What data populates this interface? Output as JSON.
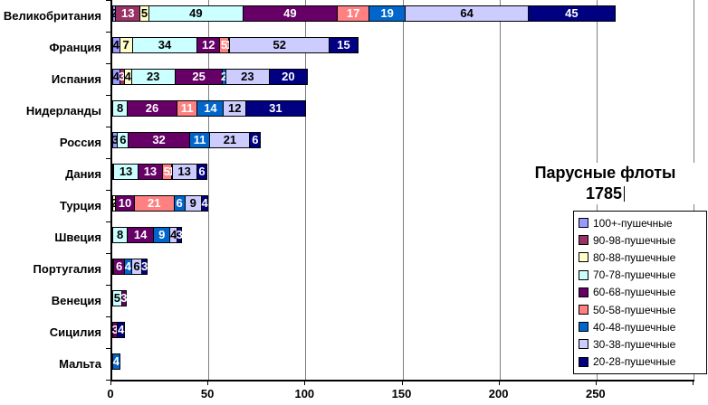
{
  "title": {
    "line1": "Парусные флоты",
    "line2": "1785"
  },
  "axis": {
    "tick_labels": [
      "0",
      "50",
      "100",
      "150",
      "200",
      "250"
    ],
    "tick_step": 50,
    "max": 300
  },
  "legend": {
    "items": [
      {
        "label": "100+-пушечные",
        "color": "#9999FF"
      },
      {
        "label": "90-98-пушечные",
        "color": "#993366"
      },
      {
        "label": "80-88-пушечные",
        "color": "#FFFFCC"
      },
      {
        "label": "70-78-пушечные",
        "color": "#CCFFFF"
      },
      {
        "label": "60-68-пушечные",
        "color": "#660066"
      },
      {
        "label": "50-58-пушечные",
        "color": "#FF8080"
      },
      {
        "label": "40-48-пушечные",
        "color": "#0066CC"
      },
      {
        "label": "30-38-пушечные",
        "color": "#CCCCFF"
      },
      {
        "label": "20-28-пушечные",
        "color": "#000080"
      }
    ]
  },
  "chart_data": {
    "type": "bar",
    "orientation": "horizontal",
    "stacked": true,
    "title": "Парусные флоты 1785",
    "xlabel": "",
    "ylabel": "",
    "xlim": [
      0,
      300
    ],
    "grid": true,
    "legend_position": "bottom-right",
    "series_names": [
      "100+-пушечные",
      "90-98-пушечные",
      "80-88-пушечные",
      "70-78-пушечные",
      "60-68-пушечные",
      "50-58-пушечные",
      "40-48-пушечные",
      "30-38-пушечные",
      "20-28-пушечные"
    ],
    "series_colors": [
      "#9999FF",
      "#993366",
      "#FFFFCC",
      "#CCFFFF",
      "#660066",
      "#FF8080",
      "#0066CC",
      "#CCCCFF",
      "#000080"
    ],
    "series_label_colors": [
      "#000000",
      "#FFFFFF",
      "#000000",
      "#000000",
      "#FFFFFF",
      "#FFFFFF",
      "#FFFFFF",
      "#000000",
      "#FFFFFF"
    ],
    "categories": [
      "Великобритания",
      "Франция",
      "Испания",
      "Нидерланды",
      "Россия",
      "Дания",
      "Турция",
      "Швеция",
      "Португалия",
      "Венеция",
      "Сицилия",
      "Мальта"
    ],
    "rows": [
      {
        "category": "Великобритания",
        "values": [
          2,
          13,
          5,
          49,
          49,
          17,
          19,
          64,
          45
        ]
      },
      {
        "category": "Франция",
        "values": [
          4,
          0,
          7,
          34,
          12,
          5,
          1,
          52,
          15
        ]
      },
      {
        "category": "Испания",
        "values": [
          4,
          3,
          4,
          23,
          25,
          0,
          2,
          23,
          20
        ]
      },
      {
        "category": "Нидерланды",
        "values": [
          0,
          0,
          0,
          8,
          26,
          11,
          14,
          12,
          31
        ]
      },
      {
        "category": "Россия",
        "values": [
          3,
          0,
          0,
          6,
          32,
          0,
          11,
          21,
          6
        ]
      },
      {
        "category": "Дания",
        "values": [
          0,
          0,
          1,
          13,
          13,
          5,
          1,
          13,
          6
        ]
      },
      {
        "category": "Турция",
        "values": [
          0,
          0,
          2,
          0,
          10,
          21,
          6,
          9,
          4
        ]
      },
      {
        "category": "Швеция",
        "values": [
          0,
          0,
          0,
          8,
          14,
          0,
          9,
          4,
          3
        ]
      },
      {
        "category": "Португалия",
        "values": [
          0,
          0,
          0,
          1,
          6,
          0,
          4,
          6,
          3
        ]
      },
      {
        "category": "Венеция",
        "values": [
          0,
          0,
          0,
          5,
          3,
          0,
          0,
          0,
          0
        ]
      },
      {
        "category": "Сицилия",
        "values": [
          0,
          0,
          0,
          0,
          3,
          0,
          0,
          0,
          4
        ]
      },
      {
        "category": "Мальта",
        "values": [
          0,
          0,
          0,
          0,
          0,
          0,
          4,
          0,
          0
        ]
      }
    ]
  }
}
